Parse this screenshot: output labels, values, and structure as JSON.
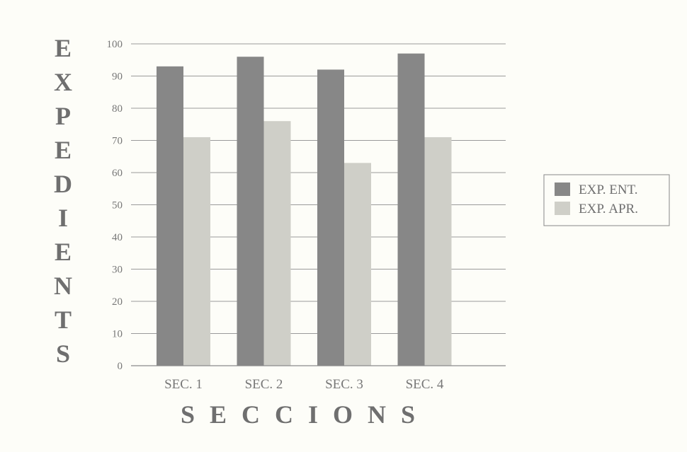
{
  "chart_data": {
    "type": "bar",
    "categories": [
      "SEC. 1",
      "SEC. 2",
      "SEC. 3",
      "SEC. 4"
    ],
    "series": [
      {
        "name": "EXP. ENT.",
        "values": [
          93,
          96,
          92,
          97
        ],
        "color": "#878787"
      },
      {
        "name": "EXP. APR.",
        "values": [
          71,
          76,
          63,
          71
        ],
        "color": "#cfcfc8"
      }
    ],
    "title": "",
    "xlabel": "SECCIONS",
    "ylabel": "EXPEDIENTS",
    "ylim": [
      0,
      100
    ],
    "yticks": [
      "0",
      "10",
      "20",
      "30",
      "40",
      "50",
      "60",
      "70",
      "80",
      "90",
      "100"
    ],
    "grid": true,
    "legend_position": "right"
  }
}
